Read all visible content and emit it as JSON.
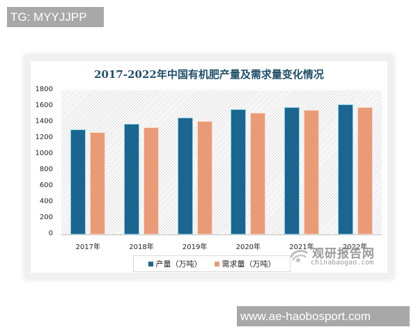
{
  "watermarks": {
    "top": "TG: MYYJJPP",
    "bottom": "www.ae-haobosport.com"
  },
  "logo": {
    "cn": "观研报告网",
    "en": "chinabaogao.com"
  },
  "colors": {
    "production": "#1b6690",
    "demand": "#e99b78",
    "title": "#1f4e6a"
  },
  "chart_data": {
    "type": "bar",
    "title": "2017-2022年中国有机肥产量及需求量变化情况",
    "xlabel": "",
    "ylabel": "",
    "ylim": [
      0,
      1800
    ],
    "yticks": [
      0,
      200,
      400,
      600,
      800,
      1000,
      1200,
      1400,
      1600,
      1800
    ],
    "yticks_labels": [
      "0",
      "200",
      "400",
      "600",
      "800",
      "1000",
      "1200",
      "1400",
      "1600",
      "1800"
    ],
    "categories": [
      "2017年",
      "2018年",
      "2019年",
      "2020年",
      "2021年",
      "2022年"
    ],
    "series": [
      {
        "name": "产量（万吨）",
        "values": [
          1310,
          1380,
          1460,
          1565,
          1590,
          1625
        ]
      },
      {
        "name": "需求量（万吨）",
        "values": [
          1275,
          1340,
          1415,
          1520,
          1555,
          1590
        ]
      }
    ],
    "grid": false,
    "legend_position": "bottom"
  }
}
